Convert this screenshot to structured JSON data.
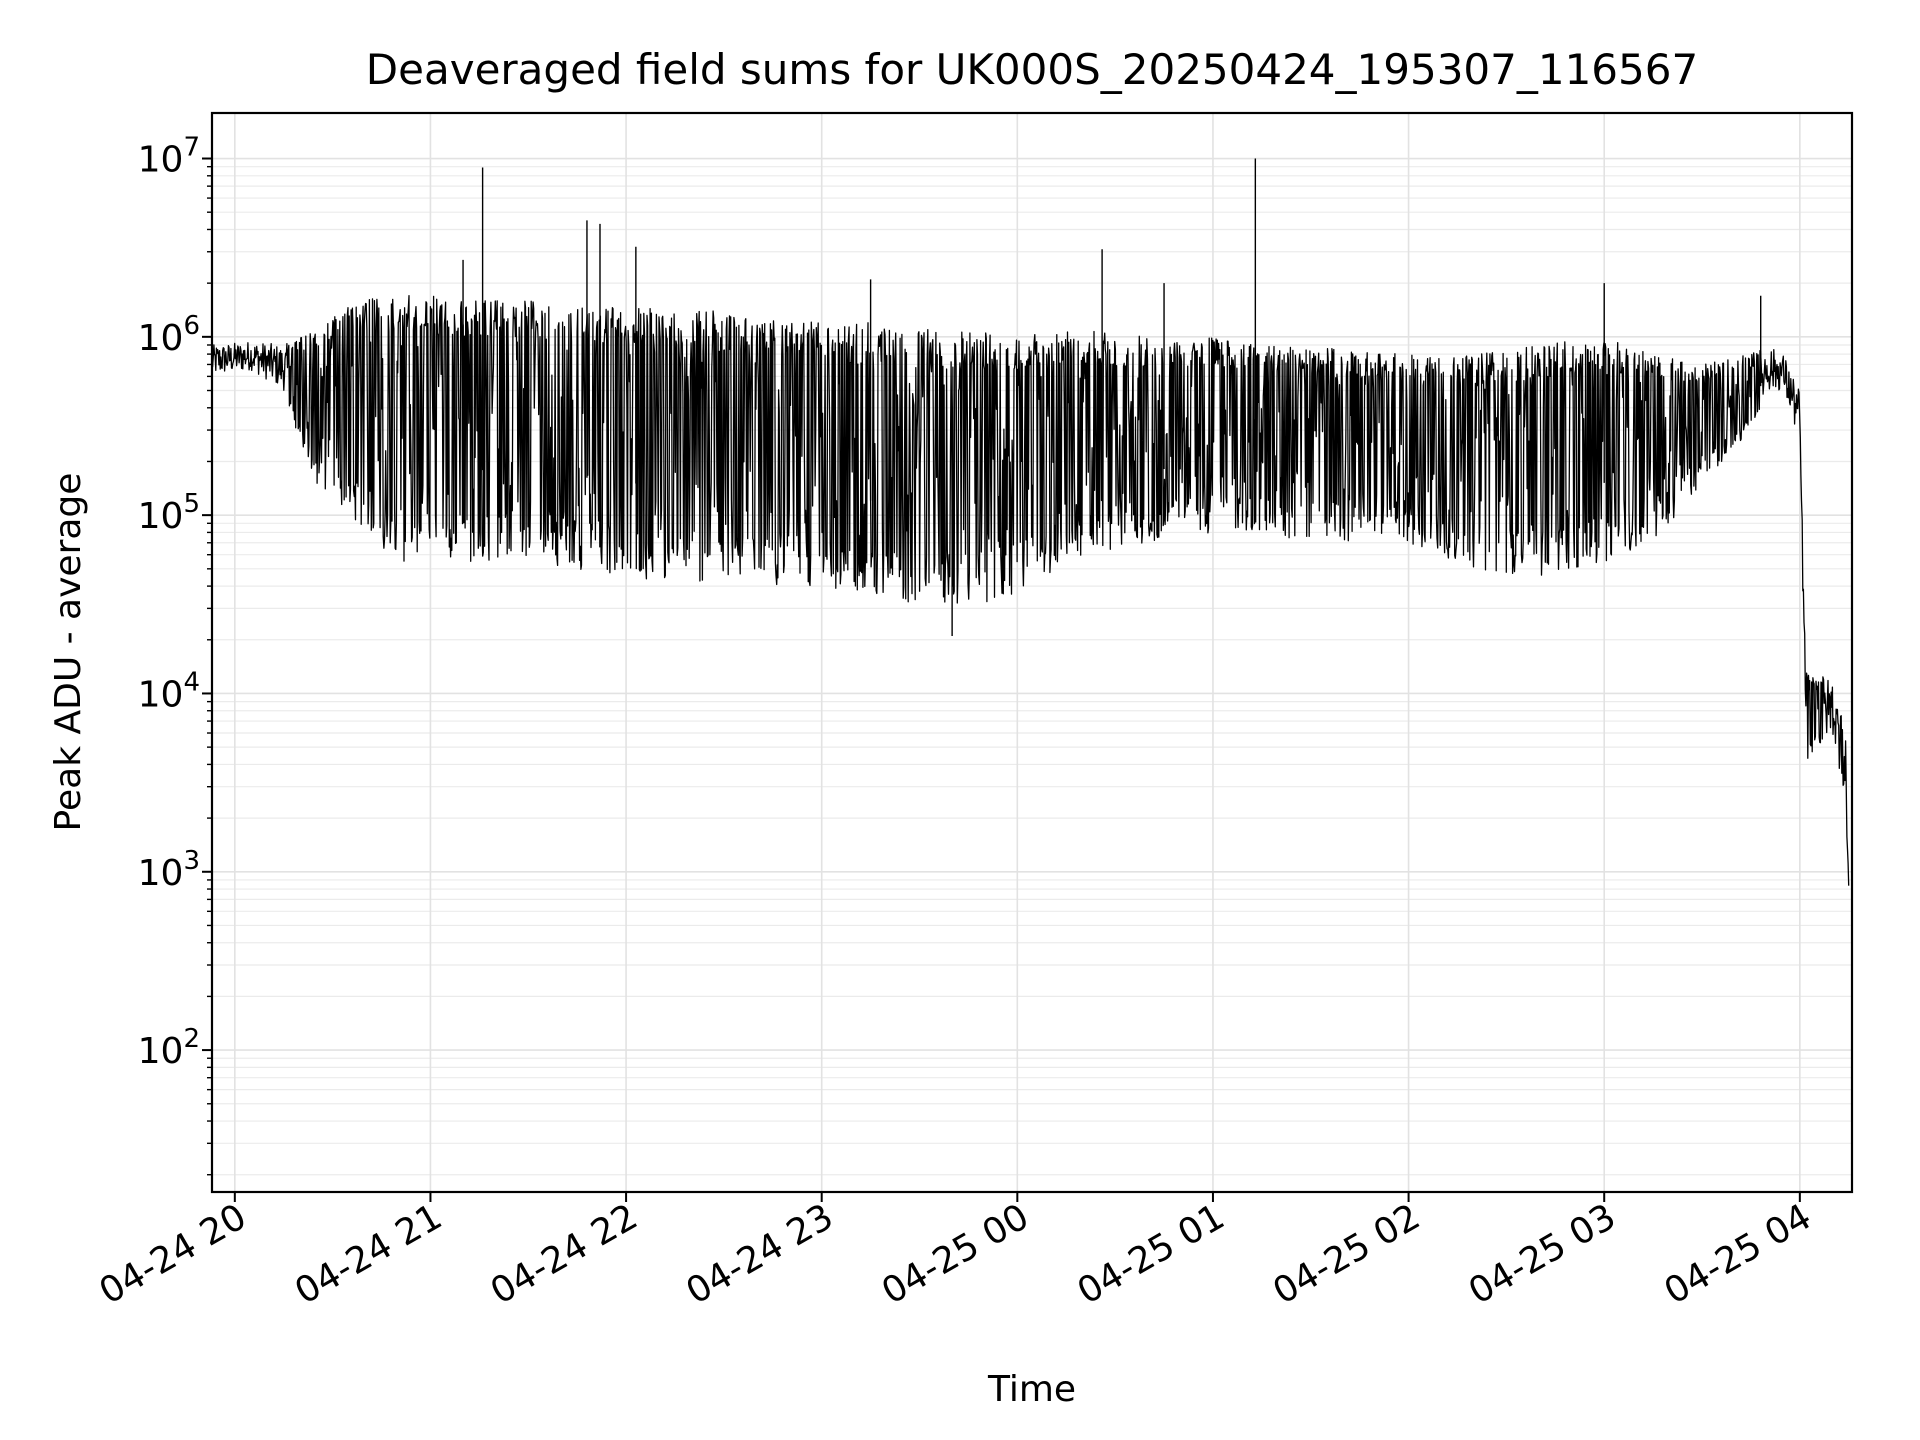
{
  "chart_data": {
    "type": "line",
    "title": "Deaveraged field sums for UK000S_20250424_195307_116567",
    "xlabel": "Time",
    "ylabel": "Peak ADU - average",
    "yscale": "log",
    "xlim": [
      "2025-04-24 19:53",
      "2025-04-25 04:16"
    ],
    "ylim": [
      16,
      18000000
    ],
    "grid": "both",
    "legend": "none",
    "line_color": "#000000",
    "x_ticks": [
      "2025-04-24 20:00",
      "2025-04-24 21:00",
      "2025-04-24 22:00",
      "2025-04-24 23:00",
      "2025-04-25 00:00",
      "2025-04-25 01:00",
      "2025-04-25 02:00",
      "2025-04-25 03:00",
      "2025-04-25 04:00"
    ],
    "x_tick_labels": [
      "04-24 20",
      "04-24 21",
      "04-24 22",
      "04-24 23",
      "04-25 00",
      "04-25 01",
      "04-25 02",
      "04-25 03",
      "04-25 04"
    ],
    "y_ticks": [
      100,
      1000,
      10000,
      100000,
      1000000,
      10000000
    ],
    "y_tick_labels": [
      {
        "base": "10",
        "exp": "2"
      },
      {
        "base": "10",
        "exp": "3"
      },
      {
        "base": "10",
        "exp": "4"
      },
      {
        "base": "10",
        "exp": "5"
      },
      {
        "base": "10",
        "exp": "6"
      },
      {
        "base": "10",
        "exp": "7"
      }
    ],
    "series": [
      {
        "x": [
          "2025-04-24 19:53",
          "2025-04-24 20:05",
          "2025-04-24 20:15",
          "2025-04-24 20:20",
          "2025-04-24 20:25",
          "2025-04-24 20:30",
          "2025-04-24 20:35",
          "2025-04-24 20:40",
          "2025-04-24 20:45",
          "2025-04-24 20:50",
          "2025-04-24 21:00",
          "2025-04-24 21:15",
          "2025-04-24 21:30",
          "2025-04-24 21:45",
          "2025-04-24 22:00",
          "2025-04-24 22:15",
          "2025-04-24 22:30",
          "2025-04-24 22:45",
          "2025-04-24 23:00",
          "2025-04-24 23:15",
          "2025-04-24 23:30",
          "2025-04-24 23:45",
          "2025-04-25 00:00",
          "2025-04-25 00:20",
          "2025-04-25 00:40",
          "2025-04-25 01:00",
          "2025-04-25 01:20",
          "2025-04-25 01:40",
          "2025-04-25 02:00",
          "2025-04-25 02:20",
          "2025-04-25 02:40",
          "2025-04-25 03:00",
          "2025-04-25 03:15",
          "2025-04-25 03:30",
          "2025-04-25 03:45",
          "2025-04-25 03:50",
          "2025-04-25 03:55",
          "2025-04-25 04:00",
          "2025-04-25 04:01",
          "2025-04-25 04:02",
          "2025-04-25 04:05",
          "2025-04-25 04:10",
          "2025-04-25 04:14",
          "2025-04-25 04:15"
        ],
        "low": [
          600000,
          650000,
          500000,
          250000,
          150000,
          120000,
          90000,
          80000,
          60000,
          55000,
          55000,
          55000,
          55000,
          50000,
          45000,
          40000,
          40000,
          40000,
          40000,
          35000,
          32000,
          30000,
          35000,
          60000,
          70000,
          80000,
          75000,
          70000,
          70000,
          50000,
          45000,
          55000,
          70000,
          150000,
          300000,
          500000,
          500000,
          250000,
          30000,
          4000,
          5000,
          6000,
          2500,
          700
        ],
        "high": [
          900000,
          950000,
          900000,
          1000000,
          1200000,
          1300000,
          1500000,
          1600000,
          1700000,
          1800000,
          1700000,
          1600000,
          1600000,
          1500000,
          1500000,
          1400000,
          1400000,
          1300000,
          1200000,
          1200000,
          1100000,
          1100000,
          1100000,
          1100000,
          1000000,
          1000000,
          900000,
          850000,
          800000,
          800000,
          900000,
          1000000,
          800000,
          700000,
          800000,
          900000,
          800000,
          500000,
          50000,
          14000,
          13000,
          12000,
          6000,
          900
        ],
        "spikes": [
          {
            "x": "2025-04-24 21:16",
            "y": 8900000
          },
          {
            "x": "2025-04-24 21:10",
            "y": 2700000
          },
          {
            "x": "2025-04-24 21:48",
            "y": 4500000
          },
          {
            "x": "2025-04-24 21:52",
            "y": 4300000
          },
          {
            "x": "2025-04-24 22:03",
            "y": 3200000
          },
          {
            "x": "2025-04-24 23:15",
            "y": 2100000
          },
          {
            "x": "2025-04-25 00:26",
            "y": 3100000
          },
          {
            "x": "2025-04-25 01:13",
            "y": 10000000
          },
          {
            "x": "2025-04-25 00:45",
            "y": 2000000
          },
          {
            "x": "2025-04-25 03:00",
            "y": 2000000
          },
          {
            "x": "2025-04-25 03:48",
            "y": 1700000
          },
          {
            "x": "2025-04-24 23:40",
            "y": 21000
          }
        ]
      }
    ]
  }
}
